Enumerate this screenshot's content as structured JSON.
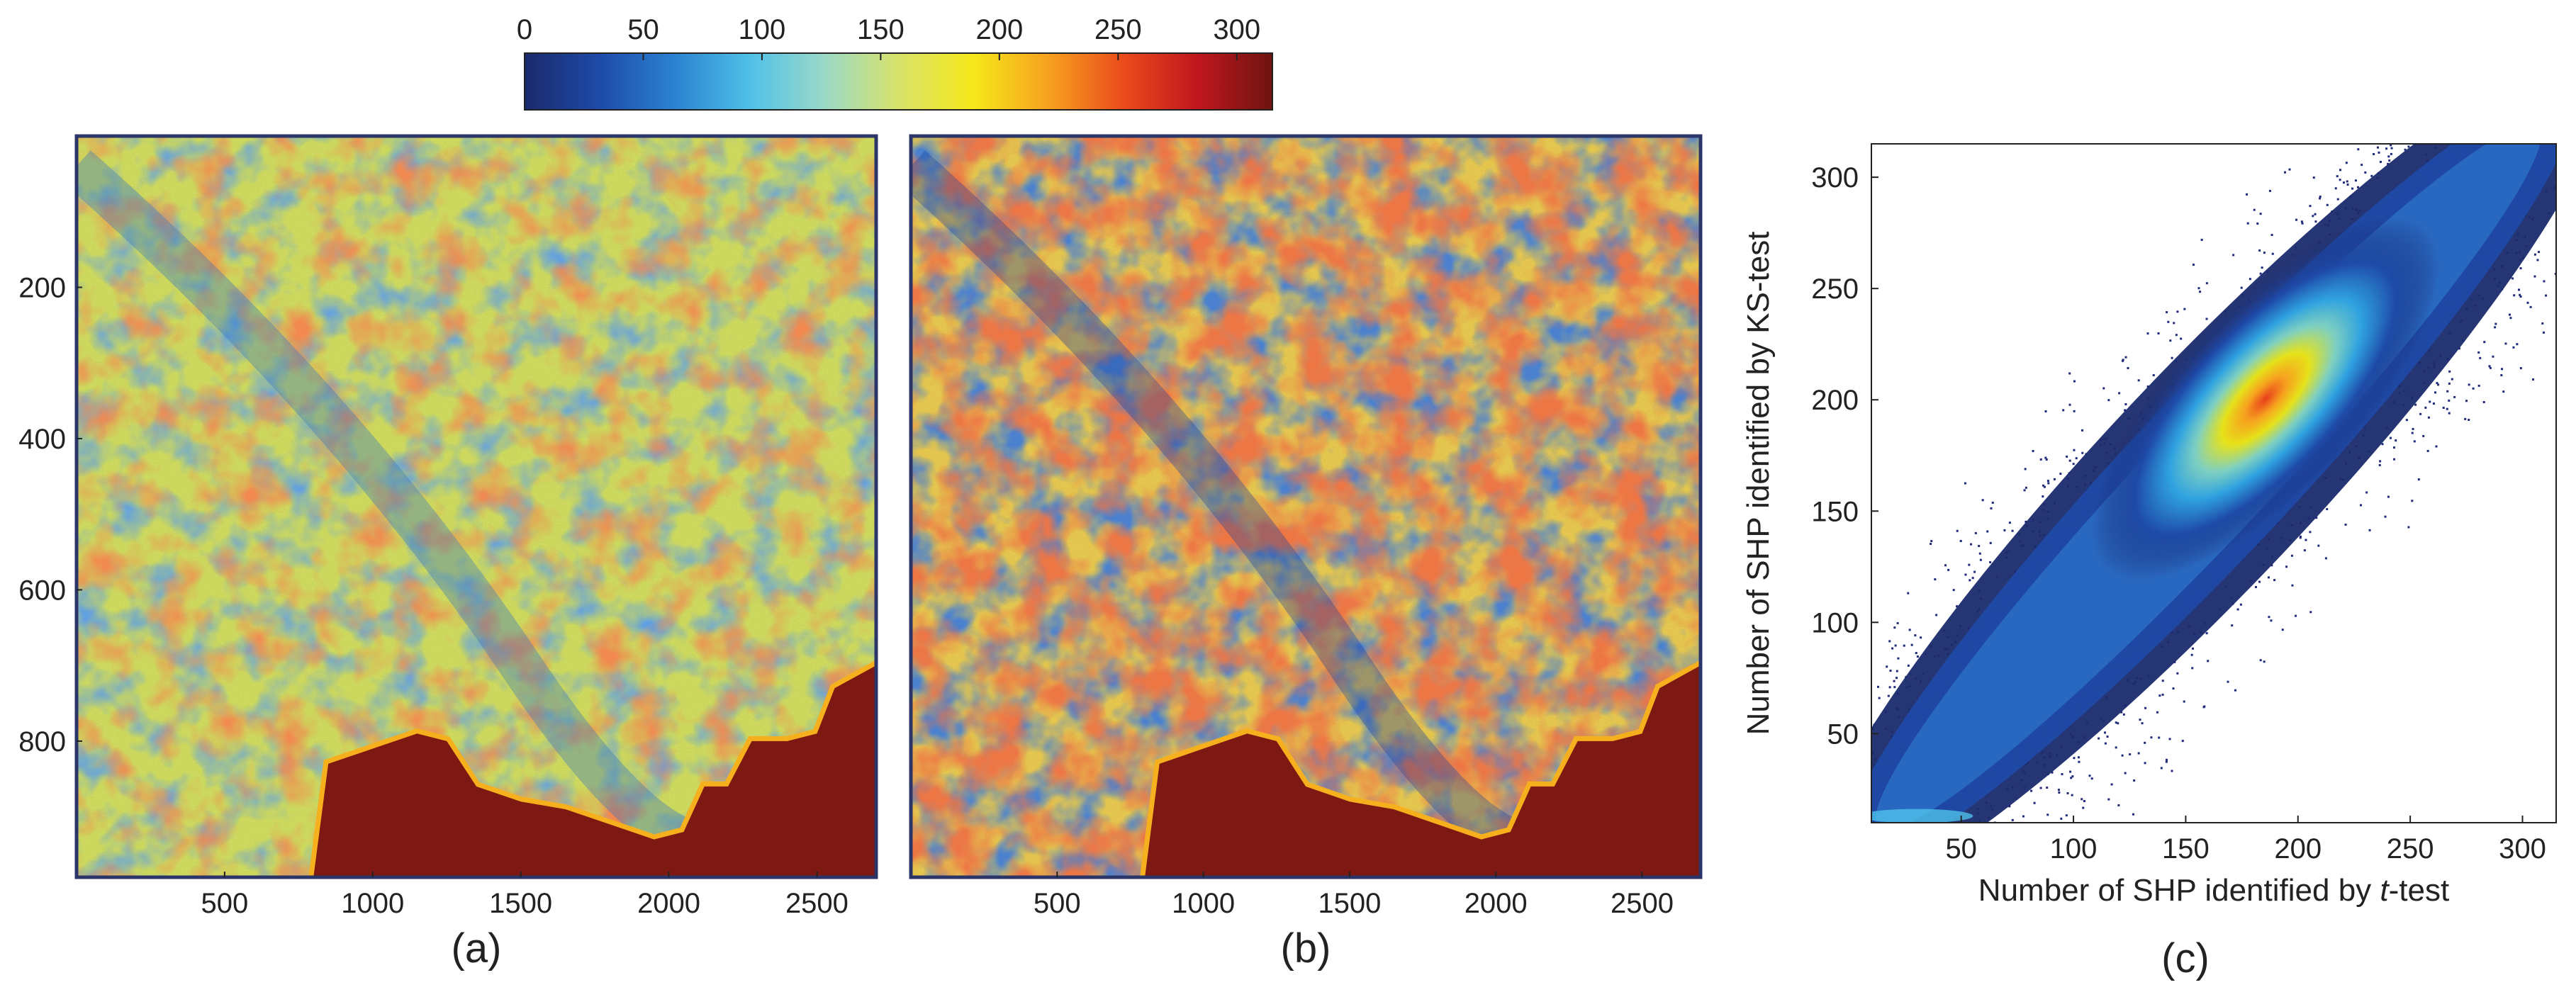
{
  "colorbar": {
    "ticks": [
      0,
      50,
      100,
      150,
      200,
      250,
      300
    ],
    "min": 0,
    "max": 315,
    "colormap": [
      "#1a2a6c",
      "#1e4aa8",
      "#2b82d0",
      "#4fc0e8",
      "#9ad9c8",
      "#d8e26a",
      "#f6e81a",
      "#f7a21e",
      "#ea4c1c",
      "#c0161e",
      "#6e1410"
    ]
  },
  "chart_data": [
    {
      "type": "heatmap",
      "panel_label": "(a)",
      "x_ticks": [
        500,
        1000,
        1500,
        2000,
        2500
      ],
      "y_ticks": [
        200,
        400,
        600,
        800
      ],
      "xlim": [
        0,
        2700
      ],
      "ylim": [
        980,
        0
      ],
      "value_range": [
        0,
        315
      ]
    },
    {
      "type": "heatmap",
      "panel_label": "(b)",
      "x_ticks": [
        500,
        1000,
        1500,
        2000,
        2500
      ],
      "y_ticks": [],
      "xlim": [
        0,
        2700
      ],
      "ylim": [
        980,
        0
      ],
      "value_range": [
        0,
        315
      ]
    },
    {
      "type": "scatter",
      "panel_label": "(c)",
      "xlabel_parts": [
        "Number of SHP identified by ",
        "t",
        "-test"
      ],
      "ylabel": "Number of SHP identified by KS-test",
      "x_ticks": [
        50,
        100,
        150,
        200,
        250,
        300
      ],
      "y_ticks": [
        50,
        100,
        150,
        200,
        250,
        300
      ],
      "xlim": [
        10,
        315
      ],
      "ylim": [
        10,
        315
      ],
      "density_peak": {
        "x": 195,
        "y": 210
      },
      "density_axis": {
        "from": [
          20,
          15
        ],
        "to": [
          300,
          315
        ]
      }
    }
  ]
}
